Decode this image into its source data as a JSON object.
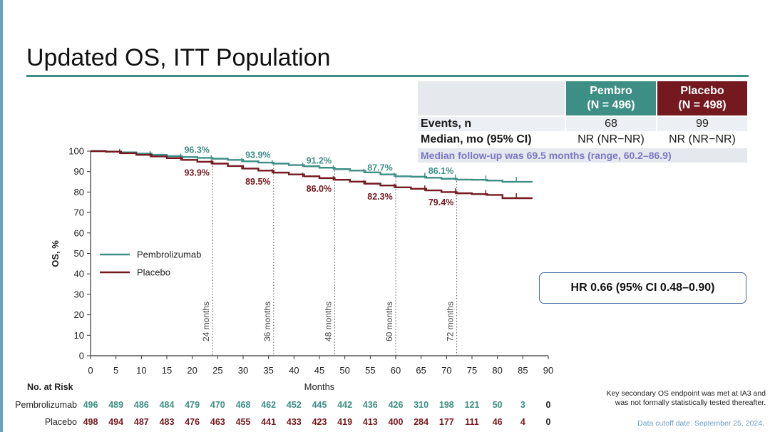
{
  "title": "Updated OS, ITT Population",
  "table": {
    "pembro_label": "Pembro",
    "pembro_n": "(N = 496)",
    "placebo_label": "Placebo",
    "placebo_n": "(N = 498)",
    "events_label": "Events, n",
    "events_pembro": "68",
    "events_placebo": "99",
    "median_label": "Median, mo (95% CI)",
    "median_pembro": "NR (NR−NR)",
    "median_placebo": "NR (NR−NR)",
    "followup": "Median follow-up was 69.5 months (range, 60.2–86.9)"
  },
  "hr_text": "HR 0.66 (95% CI 0.48–0.90)",
  "footnote_line1": "Key secondary OS endpoint was met at IA3 and",
  "footnote_line2": "was not formally statistically tested thereafter.",
  "cutoff": "Data cutoff date: September 25, 2024.",
  "colors": {
    "pembro": "#3d8f86",
    "placebo": "#74191f",
    "accent_rule": "#3d8f86",
    "followup_text": "#7a77c4",
    "hr_border": "#3f6aa0"
  },
  "chart_data": {
    "type": "line",
    "xlabel": "Months",
    "ylabel": "OS, %",
    "xlim": [
      0,
      90
    ],
    "ylim": [
      0,
      100
    ],
    "x_ticks": [
      0,
      5,
      10,
      15,
      20,
      25,
      30,
      35,
      40,
      45,
      50,
      55,
      60,
      65,
      70,
      75,
      80,
      85,
      90
    ],
    "y_ticks": [
      0,
      10,
      20,
      30,
      40,
      50,
      60,
      70,
      80,
      90,
      100
    ],
    "grid": false,
    "legend_position": "middle-left",
    "landmarks": [
      {
        "month": 24,
        "label": "24 months"
      },
      {
        "month": 36,
        "label": "36 months"
      },
      {
        "month": 48,
        "label": "48 months"
      },
      {
        "month": 60,
        "label": "60 months"
      },
      {
        "month": 72,
        "label": "72 months"
      }
    ],
    "series": [
      {
        "name": "Pembrolizumab",
        "color": "#3d8f86",
        "x": [
          0,
          3,
          6,
          9,
          12,
          15,
          18,
          21,
          24,
          27,
          30,
          33,
          36,
          39,
          42,
          45,
          48,
          51,
          54,
          57,
          60,
          63,
          66,
          69,
          72,
          75,
          78,
          81,
          84,
          86.9
        ],
        "y": [
          100,
          99.8,
          99.4,
          98.8,
          98.2,
          97.6,
          97.1,
          96.7,
          96.3,
          95.7,
          95.0,
          94.4,
          93.9,
          93.2,
          92.6,
          91.9,
          91.2,
          90.5,
          89.6,
          88.6,
          87.7,
          87.5,
          87.0,
          86.5,
          86.1,
          86.0,
          85.6,
          85.0,
          85.0,
          85.0
        ],
        "landmark_values": [
          "96.3%",
          "93.9%",
          "91.2%",
          "87.7%",
          "86.1%"
        ]
      },
      {
        "name": "Placebo",
        "color": "#74191f",
        "x": [
          0,
          3,
          6,
          9,
          12,
          15,
          18,
          21,
          24,
          27,
          30,
          33,
          36,
          39,
          42,
          45,
          48,
          51,
          54,
          57,
          60,
          63,
          66,
          69,
          72,
          75,
          78,
          81,
          84,
          86.9
        ],
        "y": [
          100,
          99.7,
          99.0,
          98.2,
          97.4,
          96.6,
          95.7,
          94.8,
          93.9,
          92.7,
          91.5,
          90.5,
          89.5,
          88.6,
          87.7,
          86.8,
          86.0,
          85.1,
          84.1,
          83.2,
          82.3,
          81.6,
          80.8,
          80.0,
          79.4,
          79.0,
          78.6,
          77.0,
          77.0,
          77.0
        ],
        "landmark_values": [
          "93.9%",
          "89.5%",
          "86.0%",
          "82.3%",
          "79.4%"
        ]
      }
    ],
    "risk_table": {
      "title": "No. at Risk",
      "months": [
        0,
        5,
        10,
        15,
        20,
        25,
        30,
        35,
        40,
        45,
        50,
        55,
        60,
        65,
        70,
        75,
        80,
        85,
        90
      ],
      "rows": [
        {
          "name": "Pembrolizumab",
          "values": [
            496,
            489,
            486,
            484,
            479,
            470,
            468,
            462,
            452,
            445,
            442,
            436,
            426,
            310,
            198,
            121,
            50,
            3,
            0
          ]
        },
        {
          "name": "Placebo",
          "values": [
            498,
            494,
            487,
            483,
            476,
            463,
            455,
            441,
            433,
            423,
            419,
            413,
            400,
            284,
            177,
            111,
            46,
            4,
            0
          ]
        }
      ]
    }
  }
}
